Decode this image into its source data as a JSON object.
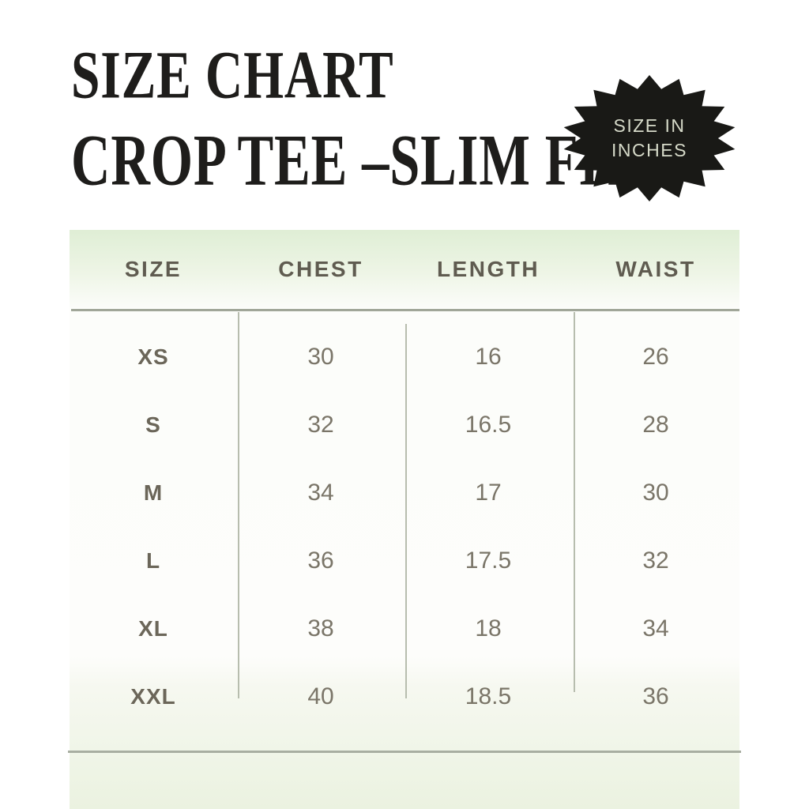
{
  "title": {
    "line1": "SIZE CHART",
    "line2": "CROP TEE –SLIM FIT"
  },
  "badge": {
    "line1": "SIZE IN",
    "line2": "INCHES"
  },
  "table": {
    "headers": [
      "SIZE",
      "CHEST",
      "LENGTH",
      "WAIST"
    ],
    "rows": [
      [
        "XS",
        "30",
        "16",
        "26"
      ],
      [
        "S",
        "32",
        "16.5",
        "28"
      ],
      [
        "M",
        "34",
        "17",
        "30"
      ],
      [
        "L",
        "36",
        "17.5",
        "32"
      ],
      [
        "XL",
        "38",
        "18",
        "34"
      ],
      [
        "XXL",
        "40",
        "18.5",
        "36"
      ]
    ]
  },
  "colors": {
    "title_text": "#1e1d1b",
    "badge_background": "#191916",
    "badge_text": "#d6dac9",
    "header_green_top": "#dfeed5",
    "bottom_green": "#ebf2e0",
    "header_text": "#5f5b50",
    "size_label_text": "#6b6659",
    "number_text": "#7a7568",
    "rule_line": "#a0a698",
    "divider_line": "#b7bdae"
  }
}
